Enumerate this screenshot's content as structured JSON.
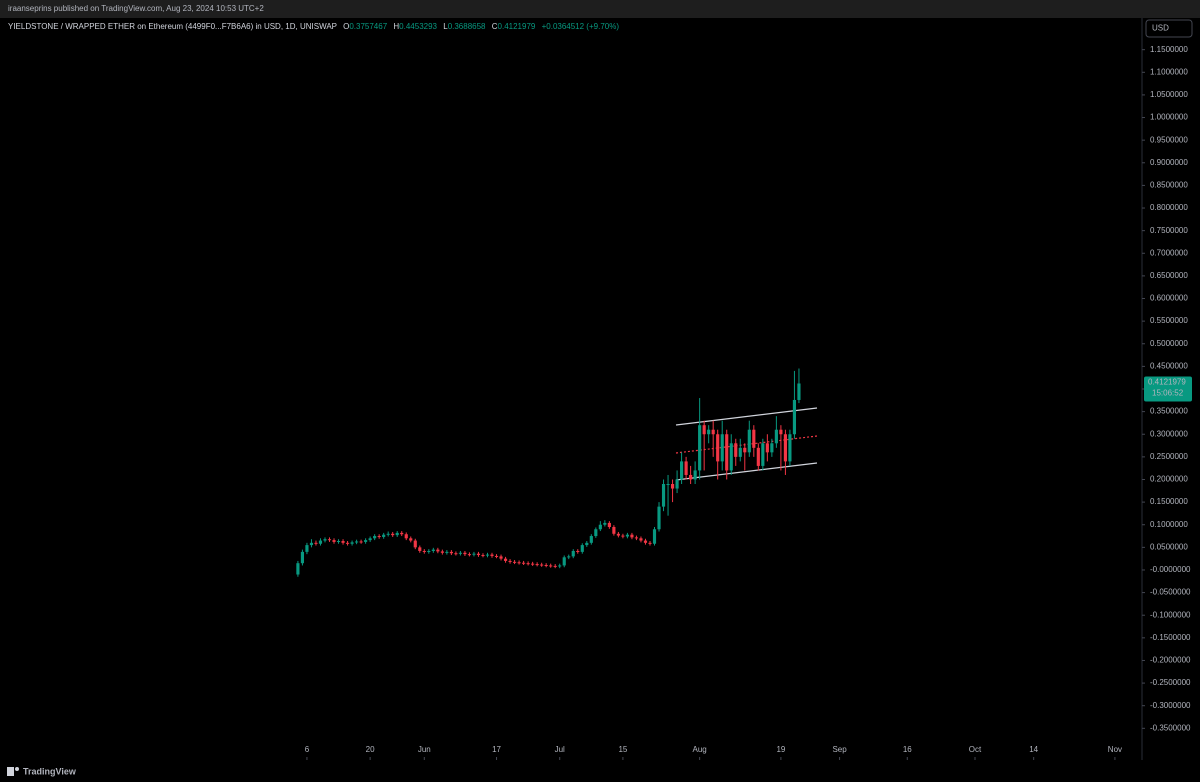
{
  "header": {
    "publisher": "iraanseprins published on TradingView.com, Aug 23, 2024 10:53 UTC+2"
  },
  "chart_data": {
    "type": "candlestick",
    "symbol": "YIELDSTONE / WRAPPED ETHER on Ethereum (4499F0...F7B6A6) in USD, 1D, UNISWAP",
    "ohlc_labels": [
      "O",
      "H",
      "L",
      "C"
    ],
    "change": "+0.0364512 (+9.70%)",
    "currency": "USD",
    "countdown": "15:06:52",
    "up_color": "#089981",
    "down_color": "#f23645",
    "x": [
      "2024-05-04",
      "2024-05-05",
      "2024-05-06",
      "2024-05-07",
      "2024-05-08",
      "2024-05-09",
      "2024-05-10",
      "2024-05-11",
      "2024-05-12",
      "2024-05-13",
      "2024-05-14",
      "2024-05-15",
      "2024-05-16",
      "2024-05-17",
      "2024-05-18",
      "2024-05-19",
      "2024-05-20",
      "2024-05-21",
      "2024-05-22",
      "2024-05-23",
      "2024-05-24",
      "2024-05-25",
      "2024-05-26",
      "2024-05-27",
      "2024-05-28",
      "2024-05-29",
      "2024-05-30",
      "2024-05-31",
      "2024-06-01",
      "2024-06-02",
      "2024-06-03",
      "2024-06-04",
      "2024-06-05",
      "2024-06-06",
      "2024-06-07",
      "2024-06-08",
      "2024-06-09",
      "2024-06-10",
      "2024-06-11",
      "2024-06-12",
      "2024-06-13",
      "2024-06-14",
      "2024-06-15",
      "2024-06-16",
      "2024-06-17",
      "2024-06-18",
      "2024-06-19",
      "2024-06-20",
      "2024-06-21",
      "2024-06-22",
      "2024-06-23",
      "2024-06-24",
      "2024-06-25",
      "2024-06-26",
      "2024-06-27",
      "2024-06-28",
      "2024-06-29",
      "2024-06-30",
      "2024-07-01",
      "2024-07-02",
      "2024-07-03",
      "2024-07-04",
      "2024-07-05",
      "2024-07-06",
      "2024-07-07",
      "2024-07-08",
      "2024-07-09",
      "2024-07-10",
      "2024-07-11",
      "2024-07-12",
      "2024-07-13",
      "2024-07-14",
      "2024-07-15",
      "2024-07-16",
      "2024-07-17",
      "2024-07-18",
      "2024-07-19",
      "2024-07-20",
      "2024-07-21",
      "2024-07-22",
      "2024-07-23",
      "2024-07-24",
      "2024-07-25",
      "2024-07-26",
      "2024-07-27",
      "2024-07-28",
      "2024-07-29",
      "2024-07-30",
      "2024-07-31",
      "2024-08-01",
      "2024-08-02",
      "2024-08-03",
      "2024-08-04",
      "2024-08-05",
      "2024-08-06",
      "2024-08-07",
      "2024-08-08",
      "2024-08-09",
      "2024-08-10",
      "2024-08-11",
      "2024-08-12",
      "2024-08-13",
      "2024-08-14",
      "2024-08-15",
      "2024-08-16",
      "2024-08-17",
      "2024-08-18",
      "2024-08-19",
      "2024-08-20",
      "2024-08-21",
      "2024-08-22",
      "2024-08-23"
    ],
    "open": [
      -0.01,
      0.015,
      0.04,
      0.055,
      0.06,
      0.058,
      0.065,
      0.068,
      0.066,
      0.062,
      0.064,
      0.06,
      0.058,
      0.061,
      0.063,
      0.062,
      0.066,
      0.07,
      0.075,
      0.073,
      0.078,
      0.08,
      0.077,
      0.082,
      0.079,
      0.07,
      0.065,
      0.05,
      0.042,
      0.04,
      0.042,
      0.045,
      0.041,
      0.038,
      0.04,
      0.037,
      0.036,
      0.038,
      0.035,
      0.034,
      0.036,
      0.033,
      0.032,
      0.034,
      0.031,
      0.03,
      0.025,
      0.02,
      0.018,
      0.017,
      0.016,
      0.015,
      0.014,
      0.013,
      0.012,
      0.011,
      0.01,
      0.009,
      0.008,
      0.01,
      0.028,
      0.03,
      0.042,
      0.04,
      0.055,
      0.06,
      0.075,
      0.09,
      0.1,
      0.104,
      0.095,
      0.08,
      0.076,
      0.074,
      0.078,
      0.072,
      0.07,
      0.065,
      0.06,
      0.058,
      0.09,
      0.14,
      0.19,
      0.19,
      0.18,
      0.2,
      0.24,
      0.21,
      0.2,
      0.22,
      0.32,
      0.3,
      0.31,
      0.3,
      0.24,
      0.3,
      0.22,
      0.28,
      0.25,
      0.27,
      0.26,
      0.31,
      0.27,
      0.23,
      0.28,
      0.26,
      0.28,
      0.31,
      0.3,
      0.24,
      0.3,
      0.3757467
    ],
    "high": [
      0.02,
      0.045,
      0.06,
      0.068,
      0.065,
      0.07,
      0.072,
      0.072,
      0.07,
      0.068,
      0.068,
      0.064,
      0.065,
      0.067,
      0.067,
      0.07,
      0.074,
      0.079,
      0.079,
      0.082,
      0.085,
      0.084,
      0.086,
      0.086,
      0.083,
      0.074,
      0.069,
      0.054,
      0.046,
      0.046,
      0.049,
      0.049,
      0.045,
      0.044,
      0.044,
      0.041,
      0.042,
      0.042,
      0.039,
      0.04,
      0.04,
      0.037,
      0.038,
      0.038,
      0.035,
      0.034,
      0.029,
      0.024,
      0.022,
      0.021,
      0.02,
      0.019,
      0.018,
      0.017,
      0.016,
      0.015,
      0.014,
      0.013,
      0.014,
      0.032,
      0.034,
      0.046,
      0.046,
      0.059,
      0.064,
      0.079,
      0.094,
      0.108,
      0.11,
      0.108,
      0.099,
      0.084,
      0.08,
      0.082,
      0.082,
      0.076,
      0.074,
      0.069,
      0.064,
      0.095,
      0.15,
      0.2,
      0.21,
      0.2,
      0.22,
      0.26,
      0.25,
      0.23,
      0.24,
      0.38,
      0.33,
      0.32,
      0.33,
      0.31,
      0.33,
      0.31,
      0.3,
      0.29,
      0.29,
      0.28,
      0.33,
      0.32,
      0.28,
      0.29,
      0.3,
      0.29,
      0.34,
      0.32,
      0.31,
      0.31,
      0.44,
      0.4453293
    ],
    "low": [
      -0.015,
      0.01,
      0.035,
      0.05,
      0.054,
      0.054,
      0.061,
      0.062,
      0.058,
      0.058,
      0.056,
      0.054,
      0.054,
      0.057,
      0.058,
      0.058,
      0.062,
      0.066,
      0.069,
      0.069,
      0.074,
      0.073,
      0.073,
      0.075,
      0.066,
      0.061,
      0.046,
      0.038,
      0.036,
      0.036,
      0.038,
      0.037,
      0.034,
      0.034,
      0.033,
      0.032,
      0.032,
      0.031,
      0.03,
      0.03,
      0.029,
      0.028,
      0.028,
      0.027,
      0.026,
      0.021,
      0.016,
      0.014,
      0.013,
      0.012,
      0.011,
      0.01,
      0.009,
      0.008,
      0.007,
      0.006,
      0.005,
      0.004,
      0.004,
      0.006,
      0.024,
      0.026,
      0.036,
      0.036,
      0.051,
      0.056,
      0.071,
      0.086,
      0.096,
      0.091,
      0.076,
      0.072,
      0.07,
      0.07,
      0.068,
      0.066,
      0.061,
      0.056,
      0.054,
      0.054,
      0.085,
      0.13,
      0.12,
      0.15,
      0.17,
      0.19,
      0.2,
      0.19,
      0.19,
      0.2,
      0.22,
      0.28,
      0.25,
      0.2,
      0.22,
      0.2,
      0.21,
      0.23,
      0.24,
      0.22,
      0.25,
      0.25,
      0.22,
      0.22,
      0.24,
      0.25,
      0.27,
      0.22,
      0.21,
      0.23,
      0.29,
      0.3688658
    ],
    "close": [
      0.015,
      0.04,
      0.055,
      0.06,
      0.058,
      0.065,
      0.068,
      0.066,
      0.062,
      0.064,
      0.06,
      0.058,
      0.061,
      0.063,
      0.062,
      0.066,
      0.07,
      0.075,
      0.073,
      0.078,
      0.08,
      0.077,
      0.082,
      0.079,
      0.07,
      0.065,
      0.05,
      0.042,
      0.04,
      0.042,
      0.045,
      0.041,
      0.038,
      0.04,
      0.037,
      0.036,
      0.038,
      0.035,
      0.034,
      0.036,
      0.033,
      0.032,
      0.034,
      0.031,
      0.03,
      0.025,
      0.02,
      0.018,
      0.017,
      0.016,
      0.015,
      0.014,
      0.013,
      0.012,
      0.011,
      0.01,
      0.009,
      0.008,
      0.01,
      0.028,
      0.03,
      0.042,
      0.04,
      0.055,
      0.06,
      0.075,
      0.09,
      0.1,
      0.104,
      0.095,
      0.08,
      0.076,
      0.074,
      0.078,
      0.072,
      0.07,
      0.065,
      0.06,
      0.058,
      0.09,
      0.14,
      0.19,
      0.19,
      0.18,
      0.2,
      0.24,
      0.21,
      0.2,
      0.22,
      0.32,
      0.3,
      0.31,
      0.3,
      0.24,
      0.3,
      0.22,
      0.28,
      0.25,
      0.27,
      0.26,
      0.31,
      0.27,
      0.23,
      0.28,
      0.26,
      0.28,
      0.31,
      0.3,
      0.24,
      0.3,
      0.3757467,
      0.4121979
    ],
    "xlim": [
      "2024-02-28",
      "2024-11-07"
    ],
    "xticks": [
      {
        "value": "2024-05-06",
        "label": "6"
      },
      {
        "value": "2024-05-20",
        "label": "20"
      },
      {
        "value": "2024-06-01",
        "label": "Jun"
      },
      {
        "value": "2024-06-17",
        "label": "17"
      },
      {
        "value": "2024-07-01",
        "label": "Jul"
      },
      {
        "value": "2024-07-15",
        "label": "15"
      },
      {
        "value": "2024-08-01",
        "label": "Aug"
      },
      {
        "value": "2024-08-19",
        "label": "19"
      },
      {
        "value": "2024-09-01",
        "label": "Sep"
      },
      {
        "value": "2024-09-16",
        "label": "16"
      },
      {
        "value": "2024-10-01",
        "label": "Oct"
      },
      {
        "value": "2024-10-14",
        "label": "14"
      },
      {
        "value": "2024-11-01",
        "label": "Nov"
      }
    ],
    "ylim": [
      -0.42,
      1.22
    ],
    "yticks": [
      {
        "value": 1.15,
        "label": "1.1500000"
      },
      {
        "value": 1.1,
        "label": "1.1000000"
      },
      {
        "value": 1.05,
        "label": "1.0500000"
      },
      {
        "value": 1,
        "label": "1.0000000"
      },
      {
        "value": 0.95,
        "label": "0.9500000"
      },
      {
        "value": 0.9,
        "label": "0.9000000"
      },
      {
        "value": 0.85,
        "label": "0.8500000"
      },
      {
        "value": 0.8,
        "label": "0.8000000"
      },
      {
        "value": 0.75,
        "label": "0.7500000"
      },
      {
        "value": 0.7,
        "label": "0.7000000"
      },
      {
        "value": 0.65,
        "label": "0.6500000"
      },
      {
        "value": 0.6,
        "label": "0.6000000"
      },
      {
        "value": 0.55,
        "label": "0.5500000"
      },
      {
        "value": 0.5,
        "label": "0.5000000"
      },
      {
        "value": 0.45,
        "label": "0.4500000"
      },
      {
        "value": 0.4,
        "label": "0.4000000"
      },
      {
        "value": 0.35,
        "label": "0.3500000"
      },
      {
        "value": 0.3,
        "label": "0.3000000"
      },
      {
        "value": 0.25,
        "label": "0.2500000"
      },
      {
        "value": 0.2,
        "label": "0.2000000"
      },
      {
        "value": 0.15,
        "label": "0.1500000"
      },
      {
        "value": 0.1,
        "label": "0.1000000"
      },
      {
        "value": 0.05,
        "label": "0.0500000"
      },
      {
        "value": 0,
        "label": "-0.0000000"
      },
      {
        "value": -0.05,
        "label": "-0.0500000"
      },
      {
        "value": -0.1,
        "label": "-0.1000000"
      },
      {
        "value": -0.15,
        "label": "-0.1500000"
      },
      {
        "value": -0.2,
        "label": "-0.2000000"
      },
      {
        "value": -0.25,
        "label": "-0.2500000"
      },
      {
        "value": -0.3,
        "label": "-0.3000000"
      },
      {
        "value": -0.35,
        "label": "-0.3500000"
      }
    ]
  },
  "footer": {
    "brand": "TradingView"
  }
}
